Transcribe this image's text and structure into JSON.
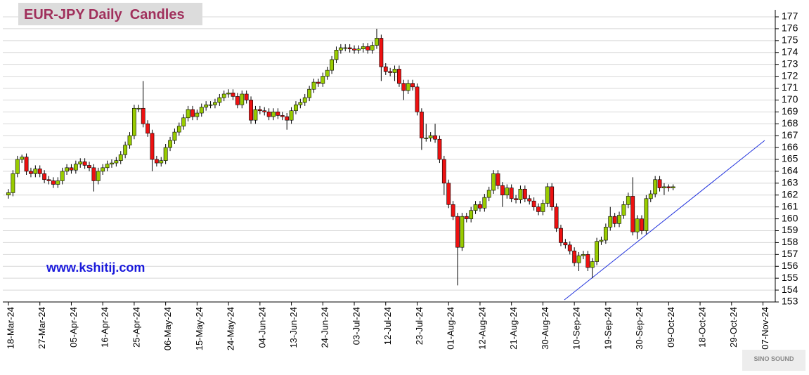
{
  "chart_data": {
    "type": "candlestick",
    "title": "EUR-JPY Daily  Candles",
    "annotation": "www.kshitij.com",
    "watermark": "SINO SOUND",
    "up_color": "#99cc00",
    "down_color": "#ee1111",
    "grid": true,
    "ylim": [
      153,
      177
    ],
    "yticks": [
      153,
      154,
      155,
      156,
      157,
      158,
      159,
      160,
      161,
      162,
      163,
      164,
      165,
      166,
      167,
      168,
      169,
      170,
      171,
      172,
      173,
      174,
      175,
      176,
      177
    ],
    "categories": [
      "18-Mar-24",
      null,
      null,
      null,
      null,
      null,
      null,
      "27-Mar-24",
      null,
      null,
      null,
      null,
      null,
      null,
      "05-Apr-24",
      null,
      null,
      null,
      null,
      null,
      null,
      "16-Apr-24",
      null,
      null,
      null,
      null,
      null,
      null,
      "25-Apr-24",
      null,
      null,
      null,
      null,
      null,
      null,
      "06-May-24",
      null,
      null,
      null,
      null,
      null,
      null,
      "15-May-24",
      null,
      null,
      null,
      null,
      null,
      null,
      "24-May-24",
      null,
      null,
      null,
      null,
      null,
      null,
      "04-Jun-24",
      null,
      null,
      null,
      null,
      null,
      null,
      "13-Jun-24",
      null,
      null,
      null,
      null,
      null,
      null,
      "24-Jun-24",
      null,
      null,
      null,
      null,
      null,
      null,
      "03-Jul-24",
      null,
      null,
      null,
      null,
      null,
      null,
      "12-Jul-24",
      null,
      null,
      null,
      null,
      null,
      null,
      "23-Jul-24",
      null,
      null,
      null,
      null,
      null,
      null,
      "01-Aug-24",
      null,
      null,
      null,
      null,
      null,
      null,
      "12-Aug-24",
      null,
      null,
      null,
      null,
      null,
      null,
      "21-Aug-24",
      null,
      null,
      null,
      null,
      null,
      null,
      "30-Aug-24",
      null,
      null,
      null,
      null,
      null,
      null,
      "10-Sep-24",
      null,
      null,
      null,
      null,
      null,
      null,
      "19-Sep-24",
      null,
      null,
      null,
      null,
      null,
      null,
      "30-Sep-24",
      null,
      null,
      null,
      null,
      null,
      null,
      "09-Oct-24",
      null,
      null,
      null,
      null,
      null,
      null,
      "18-Oct-24",
      null,
      null,
      null,
      null,
      null,
      null,
      "29-Oct-24",
      null,
      null,
      null,
      null,
      null,
      null,
      "07-Nov-24"
    ],
    "open": [
      162.0,
      162.2,
      163.8,
      165.0,
      165.2,
      164.0,
      163.8,
      164.2,
      163.8,
      163.3,
      163.2,
      162.9,
      163.2,
      164.0,
      164.3,
      164.1,
      164.6,
      164.8,
      164.5,
      164.3,
      163.2,
      164.0,
      164.3,
      164.6,
      164.7,
      164.9,
      165.4,
      166.2,
      167.0,
      169.3,
      169.3,
      168.0,
      167.2,
      165.0,
      164.7,
      164.9,
      166.0,
      166.6,
      167.3,
      167.8,
      168.5,
      169.2,
      168.6,
      168.9,
      169.4,
      169.6,
      169.6,
      169.8,
      170.2,
      170.5,
      170.6,
      170.3,
      169.6,
      170.5,
      170.0,
      168.3,
      169.2,
      169.1,
      169.0,
      168.6,
      169.0,
      168.7,
      168.6,
      168.3,
      169.1,
      169.6,
      169.8,
      170.2,
      170.9,
      171.5,
      171.4,
      172.0,
      172.5,
      173.4,
      174.2,
      174.4,
      174.4,
      174.3,
      174.2,
      174.3,
      174.5,
      174.2,
      174.6,
      175.2,
      172.8,
      172.4,
      172.3,
      172.6,
      171.4,
      170.8,
      171.4,
      171.1,
      169.0,
      166.8,
      166.8,
      167.0,
      166.7,
      165.0,
      163.0,
      161.2,
      160.2,
      157.6,
      160.2,
      160.0,
      160.7,
      161.2,
      160.9,
      161.8,
      162.4,
      163.8,
      162.8,
      162.0,
      162.6,
      161.7,
      161.6,
      162.5,
      161.7,
      161.5,
      161.0,
      160.6,
      161.3,
      162.7,
      161.0,
      159.2,
      158.0,
      157.8,
      157.3,
      156.3,
      156.9,
      157.0,
      155.9,
      156.4,
      158.1,
      158.2,
      159.3,
      160.2,
      159.6,
      160.3,
      161.2,
      161.9,
      158.9,
      160.0,
      159.0,
      161.7,
      162.1,
      163.3,
      162.6,
      162.7,
      162.6,
      null,
      null,
      null,
      null,
      null,
      null,
      null,
      null,
      null,
      null,
      null,
      null,
      null,
      null,
      null,
      null,
      null,
      null,
      null,
      null
    ],
    "high": [
      162.5,
      164.1,
      165.3,
      165.4,
      165.5,
      164.3,
      164.5,
      164.5,
      164.1,
      163.6,
      163.5,
      163.5,
      164.3,
      164.6,
      164.6,
      164.9,
      165.1,
      165.1,
      164.8,
      164.6,
      164.3,
      164.6,
      164.9,
      165.0,
      165.2,
      165.7,
      166.5,
      167.3,
      169.6,
      169.6,
      171.6,
      168.3,
      167.5,
      165.3,
      165.2,
      166.3,
      166.9,
      167.6,
      168.1,
      168.8,
      169.5,
      169.5,
      169.2,
      169.7,
      169.9,
      169.9,
      170.1,
      170.5,
      170.8,
      170.9,
      170.9,
      170.6,
      170.8,
      170.8,
      170.3,
      169.5,
      169.5,
      169.4,
      169.3,
      169.3,
      169.3,
      169.0,
      168.9,
      169.4,
      169.9,
      170.1,
      170.5,
      171.2,
      171.8,
      171.8,
      172.3,
      172.8,
      173.7,
      174.5,
      174.7,
      174.7,
      174.7,
      174.6,
      174.6,
      174.8,
      174.8,
      174.9,
      176.0,
      175.5,
      173.1,
      172.7,
      172.9,
      172.9,
      171.7,
      171.7,
      171.7,
      171.4,
      169.3,
      168.0,
      167.3,
      168.0,
      167.0,
      165.3,
      163.3,
      161.5,
      160.5,
      160.5,
      160.5,
      161.0,
      161.5,
      161.5,
      162.1,
      162.7,
      164.1,
      164.1,
      163.1,
      162.9,
      162.9,
      162.0,
      162.8,
      162.8,
      162.0,
      161.8,
      161.3,
      161.6,
      163.0,
      163.0,
      161.3,
      159.5,
      158.3,
      158.1,
      157.6,
      157.2,
      157.3,
      157.3,
      156.7,
      158.4,
      158.5,
      159.6,
      161.0,
      160.5,
      160.6,
      161.5,
      162.2,
      163.5,
      160.3,
      160.3,
      162.0,
      162.4,
      163.6,
      163.6,
      163.0,
      162.9,
      162.9,
      null,
      null,
      null,
      null,
      null,
      null,
      null,
      null,
      null,
      null,
      null,
      null,
      null,
      null,
      null,
      null,
      null,
      null,
      null,
      null
    ],
    "low": [
      161.7,
      161.9,
      163.5,
      164.7,
      163.7,
      163.5,
      163.5,
      163.5,
      163.0,
      162.9,
      162.6,
      162.6,
      162.9,
      163.7,
      163.8,
      163.8,
      164.3,
      164.2,
      164.0,
      162.3,
      162.9,
      163.7,
      164.0,
      164.3,
      164.4,
      164.6,
      165.1,
      165.9,
      166.7,
      169.0,
      167.7,
      166.9,
      164.0,
      164.4,
      164.4,
      164.6,
      165.7,
      166.3,
      167.0,
      167.5,
      168.2,
      168.3,
      168.3,
      168.6,
      169.1,
      169.3,
      169.3,
      169.5,
      169.9,
      170.2,
      170.0,
      169.3,
      169.3,
      169.7,
      168.0,
      168.0,
      168.8,
      168.7,
      168.3,
      168.3,
      168.4,
      168.3,
      167.5,
      168.0,
      168.8,
      169.3,
      169.5,
      169.9,
      170.6,
      171.1,
      171.1,
      171.7,
      172.2,
      173.1,
      173.9,
      174.1,
      174.0,
      173.9,
      173.9,
      174.0,
      173.9,
      173.9,
      174.3,
      171.6,
      172.1,
      172.0,
      171.6,
      171.1,
      170.0,
      170.5,
      170.8,
      168.7,
      165.8,
      166.5,
      166.5,
      166.4,
      164.7,
      162.0,
      160.9,
      159.9,
      154.4,
      157.3,
      159.7,
      159.7,
      160.4,
      160.6,
      160.6,
      161.5,
      162.1,
      162.5,
      161.0,
      161.7,
      161.4,
      161.3,
      161.3,
      161.4,
      161.2,
      160.7,
      160.3,
      160.3,
      161.0,
      160.7,
      158.9,
      157.7,
      157.5,
      157.0,
      156.0,
      155.6,
      156.6,
      155.6,
      155.0,
      156.1,
      157.8,
      157.9,
      159.0,
      159.3,
      159.3,
      160.0,
      160.9,
      158.6,
      158.3,
      158.7,
      158.7,
      161.4,
      161.8,
      162.3,
      162.0,
      162.3,
      162.4,
      null,
      null,
      null,
      null,
      null,
      null,
      null,
      null,
      null,
      null,
      null,
      null,
      null,
      null,
      null,
      null,
      null,
      null,
      null,
      null
    ],
    "close": [
      162.2,
      163.8,
      165.0,
      165.2,
      164.0,
      163.8,
      164.2,
      163.8,
      163.3,
      163.2,
      162.9,
      163.2,
      164.0,
      164.3,
      164.1,
      164.6,
      164.8,
      164.5,
      164.3,
      163.2,
      164.0,
      164.3,
      164.6,
      164.7,
      164.9,
      165.4,
      166.2,
      167.0,
      169.3,
      169.3,
      168.0,
      167.2,
      165.0,
      164.7,
      164.9,
      166.0,
      166.6,
      167.3,
      167.8,
      168.5,
      169.2,
      168.6,
      168.9,
      169.4,
      169.6,
      169.6,
      169.8,
      170.2,
      170.5,
      170.6,
      170.3,
      169.6,
      170.5,
      170.0,
      168.3,
      169.2,
      169.1,
      169.0,
      168.6,
      169.0,
      168.7,
      168.6,
      168.3,
      169.1,
      169.6,
      169.8,
      170.2,
      170.9,
      171.5,
      171.4,
      172.0,
      172.5,
      173.4,
      174.2,
      174.4,
      174.4,
      174.3,
      174.2,
      174.3,
      174.5,
      174.2,
      174.6,
      175.2,
      172.8,
      172.4,
      172.3,
      172.6,
      171.4,
      170.8,
      171.4,
      171.1,
      169.0,
      166.8,
      166.8,
      167.0,
      166.7,
      165.0,
      163.0,
      161.2,
      160.2,
      157.6,
      160.2,
      160.0,
      160.7,
      161.2,
      160.9,
      161.8,
      162.4,
      163.8,
      162.8,
      162.0,
      162.6,
      161.7,
      161.6,
      162.5,
      161.7,
      161.5,
      161.0,
      160.6,
      161.3,
      162.7,
      161.0,
      159.2,
      158.0,
      157.8,
      157.3,
      156.3,
      156.9,
      157.0,
      155.9,
      156.4,
      158.1,
      158.2,
      159.3,
      160.2,
      159.6,
      160.3,
      161.2,
      161.9,
      158.9,
      160.0,
      159.0,
      161.7,
      162.1,
      163.3,
      162.6,
      162.7,
      162.6,
      162.7,
      null,
      null,
      null,
      null,
      null,
      null,
      null,
      null,
      null,
      null,
      null,
      null,
      null,
      null,
      null,
      null,
      null,
      null,
      null,
      null
    ]
  }
}
